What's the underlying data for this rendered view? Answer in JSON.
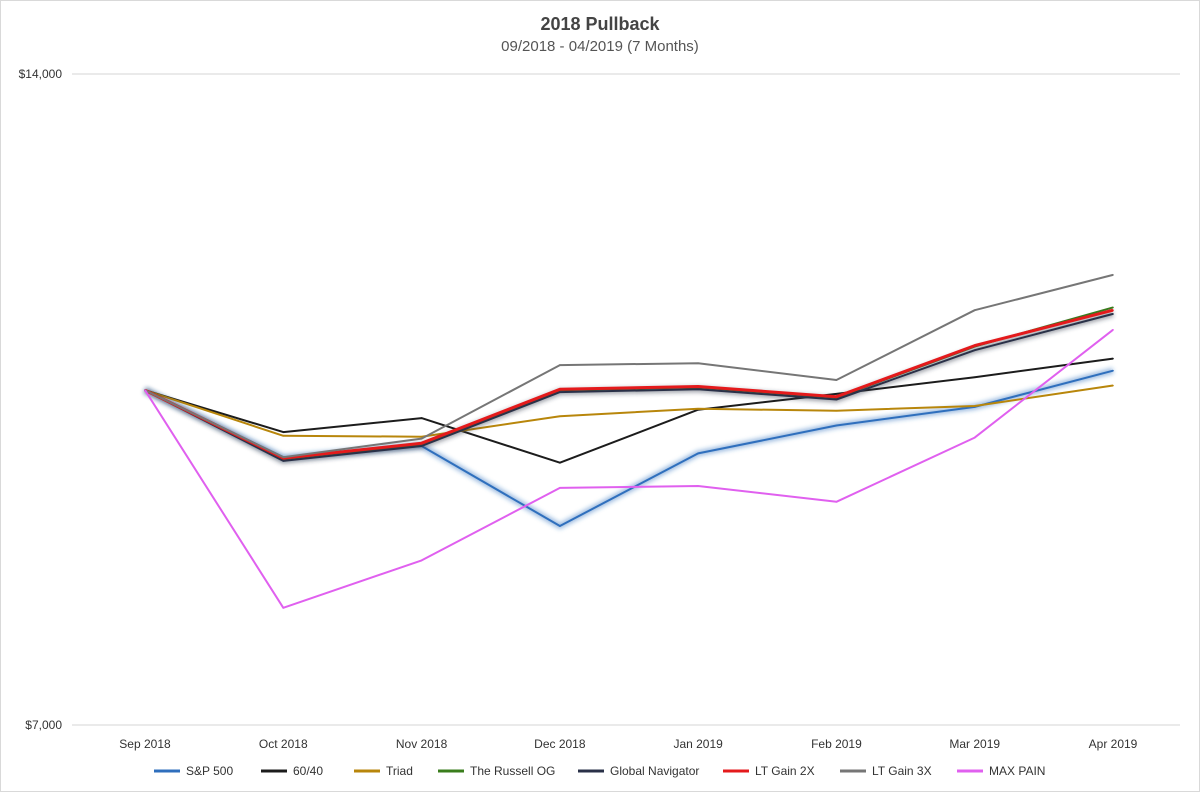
{
  "chart_data": {
    "type": "line",
    "title": "2018 Pullback",
    "subtitle": "09/2018 - 04/2019 (7 Months)",
    "xlabel": "",
    "ylabel": "",
    "categories": [
      "Sep 2018",
      "Oct 2018",
      "Nov 2018",
      "Dec 2018",
      "Jan 2019",
      "Feb 2019",
      "Mar 2019",
      "Apr 2019"
    ],
    "ylim": [
      7000,
      14000
    ],
    "yticks": [
      {
        "value": 7000,
        "label": "$7,000"
      },
      {
        "value": 14000,
        "label": "$14,000"
      }
    ],
    "legend_position": "bottom",
    "series": [
      {
        "name": "S&P 500",
        "color": "#2f6fbd",
        "glow": true,
        "values": [
          10600,
          9880,
          10000,
          9140,
          9920,
          10220,
          10420,
          10810
        ]
      },
      {
        "name": "60/40",
        "color": "#1c1c1c",
        "glow": false,
        "values": [
          10600,
          10150,
          10300,
          9820,
          10390,
          10560,
          10740,
          10940
        ]
      },
      {
        "name": "Triad",
        "color": "#b8860b",
        "glow": false,
        "values": [
          10600,
          10110,
          10100,
          10320,
          10400,
          10380,
          10430,
          10650
        ]
      },
      {
        "name": "The Russell OG",
        "color": "#3a7d1c",
        "glow": false,
        "values": [
          10600,
          9860,
          10020,
          10600,
          10630,
          10520,
          11070,
          11490
        ]
      },
      {
        "name": "Global Navigator",
        "color": "#2a3148",
        "glow": true,
        "values": [
          10600,
          9840,
          10000,
          10580,
          10610,
          10500,
          11030,
          11420
        ]
      },
      {
        "name": "LT Gain 2X",
        "color": "#e41a1c",
        "glow": false,
        "values": [
          10600,
          9870,
          10030,
          10610,
          10640,
          10530,
          11080,
          11460
        ]
      },
      {
        "name": "LT Gain 3X",
        "color": "#767676",
        "glow": false,
        "values": [
          10600,
          9880,
          10080,
          10870,
          10890,
          10710,
          11460,
          11840
        ]
      },
      {
        "name": "MAX PAIN",
        "color": "#e060ef",
        "glow": false,
        "values": [
          10600,
          8260,
          8770,
          9550,
          9570,
          9400,
          10090,
          11250
        ]
      }
    ]
  }
}
